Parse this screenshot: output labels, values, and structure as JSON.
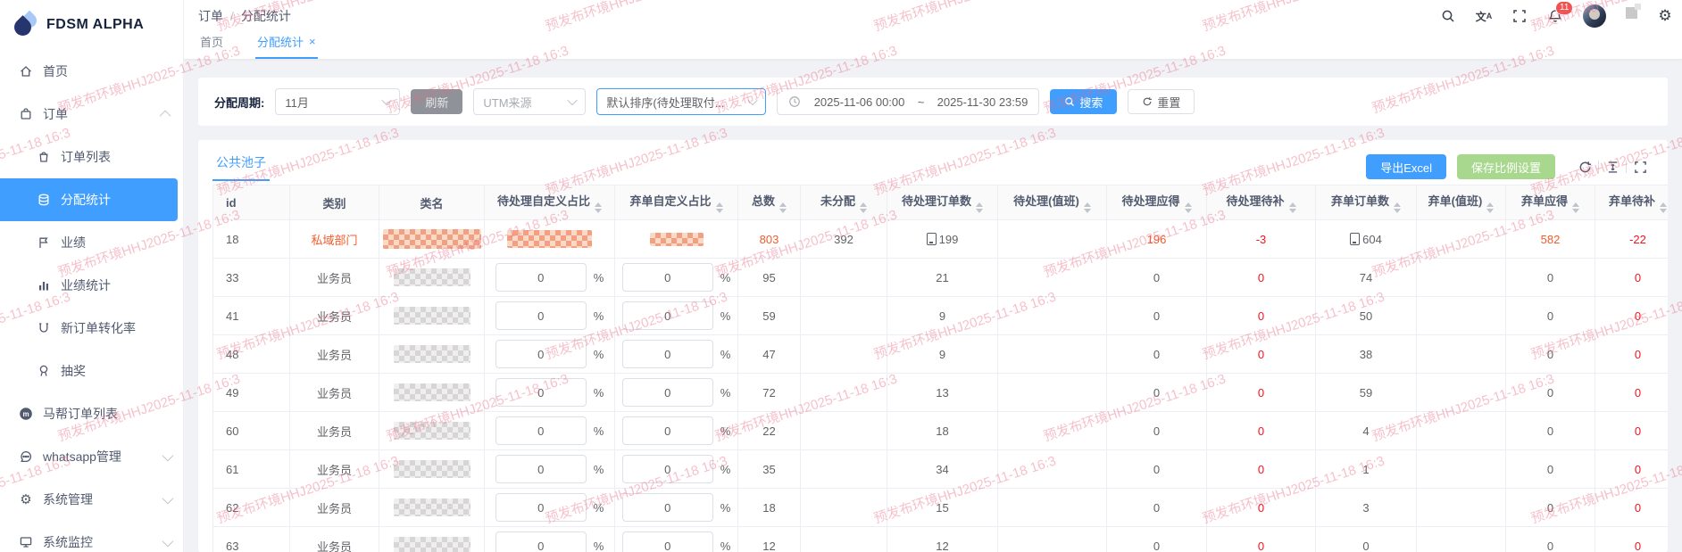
{
  "brand": {
    "name": "FDSM ALPHA",
    "logo_icon": "water-drop-icon"
  },
  "watermark": {
    "text": "预发布环境HHJ2025-11-18 16:3"
  },
  "colors": {
    "primary": "#409eff",
    "success_button": "#a8d88d",
    "info_button": "#8f9399",
    "danger_red": "#f5121f",
    "orange_red": "#f25b2a",
    "badge": "#ef5350",
    "watermark": "rgba(233,105,130,0.42)"
  },
  "header": {
    "breadcrumb": {
      "items": [
        "订单",
        "分配统计"
      ],
      "separator": "/"
    },
    "notification_count": "11"
  },
  "tabstrip": {
    "tabs": [
      {
        "label": "首页",
        "active": false
      },
      {
        "label": "分配统计",
        "active": true,
        "close": "×"
      }
    ]
  },
  "sidebar": {
    "items": [
      {
        "key": "home",
        "label": "首页",
        "icon": "home-icon",
        "level": 1
      },
      {
        "key": "orders",
        "label": "订单",
        "icon": "bag-icon",
        "level": 1,
        "chevron": "up"
      },
      {
        "key": "order-list",
        "label": "订单列表",
        "icon": "cart-icon",
        "level": 2
      },
      {
        "key": "allocation-stats",
        "label": "分配统计",
        "icon": "database-icon",
        "level": 2,
        "active": true
      },
      {
        "key": "performance",
        "label": "业绩",
        "icon": "flag-icon",
        "level": 2
      },
      {
        "key": "performance-stats",
        "label": "业绩统计",
        "icon": "bar-chart-icon",
        "level": 2
      },
      {
        "key": "new-order-conversion",
        "label": "新订单转化率",
        "icon": "magnet-icon",
        "level": 2
      },
      {
        "key": "lottery",
        "label": "抽奖",
        "icon": "medal-icon",
        "level": 2
      },
      {
        "key": "mabang-order-list",
        "label": "马帮订单列表",
        "icon": "mabang-icon",
        "level": 1
      },
      {
        "key": "whatsapp-management",
        "label": "whatsapp管理",
        "icon": "chat-icon",
        "level": 1,
        "chevron": "down"
      },
      {
        "key": "system-management",
        "label": "系统管理",
        "icon": "gear-icon",
        "level": 1,
        "chevron": "down"
      },
      {
        "key": "system-monitor",
        "label": "系统监控",
        "icon": "monitor-icon",
        "level": 1,
        "chevron": "down"
      }
    ]
  },
  "filters": {
    "period_label": "分配周期:",
    "period_value": "11月",
    "refresh_label": "刷新",
    "utm_placeholder": "UTM来源",
    "sort_value": "默认排序(待处理取付...",
    "date_start": "2025-11-06 00:00",
    "date_separator": "~",
    "date_end": "2025-11-30 23:59",
    "search_label": "搜索",
    "reset_label": "重置"
  },
  "pool": {
    "tab_label": "公共池子",
    "export_label": "导出Excel",
    "save_label": "保存比例设置"
  },
  "table": {
    "percent_suffix": "%",
    "columns": [
      {
        "key": "id",
        "label": "id",
        "sortable": false
      },
      {
        "key": "category",
        "label": "类别",
        "sortable": false
      },
      {
        "key": "name",
        "label": "类名",
        "sortable": false
      },
      {
        "key": "pending_ratio",
        "label": "待处理自定义占比",
        "sortable": true
      },
      {
        "key": "abandon_ratio",
        "label": "弃单自定义占比",
        "sortable": true
      },
      {
        "key": "total",
        "label": "总数",
        "sortable": true
      },
      {
        "key": "unassigned",
        "label": "未分配",
        "sortable": true
      },
      {
        "key": "pending_orders",
        "label": "待处理订单数",
        "sortable": true
      },
      {
        "key": "pending_duty",
        "label": "待处理(值班)",
        "sortable": true
      },
      {
        "key": "pending_due",
        "label": "待处理应得",
        "sortable": true
      },
      {
        "key": "pending_makeup",
        "label": "待处理待补",
        "sortable": true
      },
      {
        "key": "abandon_orders",
        "label": "弃单订单数",
        "sortable": true
      },
      {
        "key": "abandon_duty",
        "label": "弃单(值班)",
        "sortable": true
      },
      {
        "key": "abandon_due",
        "label": "弃单应得",
        "sortable": true
      },
      {
        "key": "abandon_makeup",
        "label": "弃单待补",
        "sortable": true
      }
    ],
    "rows": [
      {
        "id": "18",
        "category": "私域部门",
        "emphasis": true,
        "name_redacted": true,
        "ratio_type": "redacted",
        "total": "803",
        "unassigned": "392",
        "pending_orders": "199",
        "pending_copy": true,
        "pending_duty": "",
        "pending_due": "196",
        "pending_makeup": "-3",
        "abandon_orders": "604",
        "abandon_copy": true,
        "abandon_duty": "",
        "abandon_due": "582",
        "abandon_makeup": "-22"
      },
      {
        "id": "33",
        "category": "业务员",
        "name_redacted": true,
        "ratio_type": "input",
        "pending_ratio": "0",
        "abandon_ratio": "0",
        "total": "95",
        "unassigned": "",
        "pending_orders": "21",
        "pending_duty": "",
        "pending_due": "0",
        "pending_makeup": "0",
        "abandon_orders": "74",
        "abandon_duty": "",
        "abandon_due": "0",
        "abandon_makeup": "0"
      },
      {
        "id": "41",
        "category": "业务员",
        "name_redacted": true,
        "ratio_type": "input",
        "pending_ratio": "0",
        "abandon_ratio": "0",
        "total": "59",
        "unassigned": "",
        "pending_orders": "9",
        "pending_duty": "",
        "pending_due": "0",
        "pending_makeup": "0",
        "abandon_orders": "50",
        "abandon_duty": "",
        "abandon_due": "0",
        "abandon_makeup": "0"
      },
      {
        "id": "48",
        "category": "业务员",
        "name_redacted": true,
        "ratio_type": "input",
        "pending_ratio": "0",
        "abandon_ratio": "0",
        "total": "47",
        "unassigned": "",
        "pending_orders": "9",
        "pending_duty": "",
        "pending_due": "0",
        "pending_makeup": "0",
        "abandon_orders": "38",
        "abandon_duty": "",
        "abandon_due": "0",
        "abandon_makeup": "0"
      },
      {
        "id": "49",
        "category": "业务员",
        "name_redacted": true,
        "ratio_type": "input",
        "pending_ratio": "0",
        "abandon_ratio": "0",
        "total": "72",
        "unassigned": "",
        "pending_orders": "13",
        "pending_duty": "",
        "pending_due": "0",
        "pending_makeup": "0",
        "abandon_orders": "59",
        "abandon_duty": "",
        "abandon_due": "0",
        "abandon_makeup": "0"
      },
      {
        "id": "60",
        "category": "业务员",
        "name_redacted": true,
        "ratio_type": "input",
        "pending_ratio": "0",
        "abandon_ratio": "0",
        "total": "22",
        "unassigned": "",
        "pending_orders": "18",
        "pending_duty": "",
        "pending_due": "0",
        "pending_makeup": "0",
        "abandon_orders": "4",
        "abandon_duty": "",
        "abandon_due": "0",
        "abandon_makeup": "0"
      },
      {
        "id": "61",
        "category": "业务员",
        "name_redacted": true,
        "ratio_type": "input",
        "pending_ratio": "0",
        "abandon_ratio": "0",
        "total": "35",
        "unassigned": "",
        "pending_orders": "34",
        "pending_duty": "",
        "pending_due": "0",
        "pending_makeup": "0",
        "abandon_orders": "1",
        "abandon_duty": "",
        "abandon_due": "0",
        "abandon_makeup": "0"
      },
      {
        "id": "62",
        "category": "业务员",
        "name_redacted": true,
        "ratio_type": "input",
        "pending_ratio": "0",
        "abandon_ratio": "0",
        "total": "18",
        "unassigned": "",
        "pending_orders": "15",
        "pending_duty": "",
        "pending_due": "0",
        "pending_makeup": "0",
        "abandon_orders": "3",
        "abandon_duty": "",
        "abandon_due": "0",
        "abandon_makeup": "0"
      },
      {
        "id": "63",
        "category": "业务员",
        "name_redacted": true,
        "ratio_type": "input",
        "pending_ratio": "0",
        "abandon_ratio": "0",
        "total": "12",
        "unassigned": "",
        "pending_orders": "12",
        "pending_duty": "",
        "pending_due": "0",
        "pending_makeup": "0",
        "abandon_orders": "0",
        "abandon_duty": "",
        "abandon_due": "0",
        "abandon_makeup": "0"
      }
    ]
  }
}
